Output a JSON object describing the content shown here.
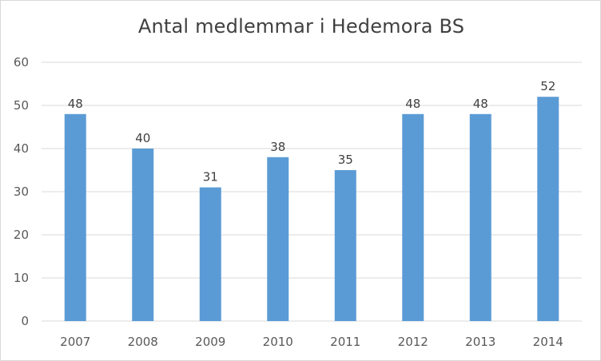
{
  "chart_data": {
    "type": "bar",
    "title": "Antal medlemmar i Hedemora BS",
    "categories": [
      "2007",
      "2008",
      "2009",
      "2010",
      "2011",
      "2012",
      "2013",
      "2014"
    ],
    "values": [
      48,
      40,
      31,
      38,
      35,
      48,
      48,
      52
    ],
    "xlabel": "",
    "ylabel": "",
    "ylim": [
      0,
      60
    ],
    "yticks": [
      "0",
      "10",
      "20",
      "30",
      "40",
      "50",
      "60"
    ],
    "grid": true,
    "legend": "none",
    "bar_color": "#5b9bd5",
    "grid_color": "#d9d9d9",
    "data_labels": true
  }
}
